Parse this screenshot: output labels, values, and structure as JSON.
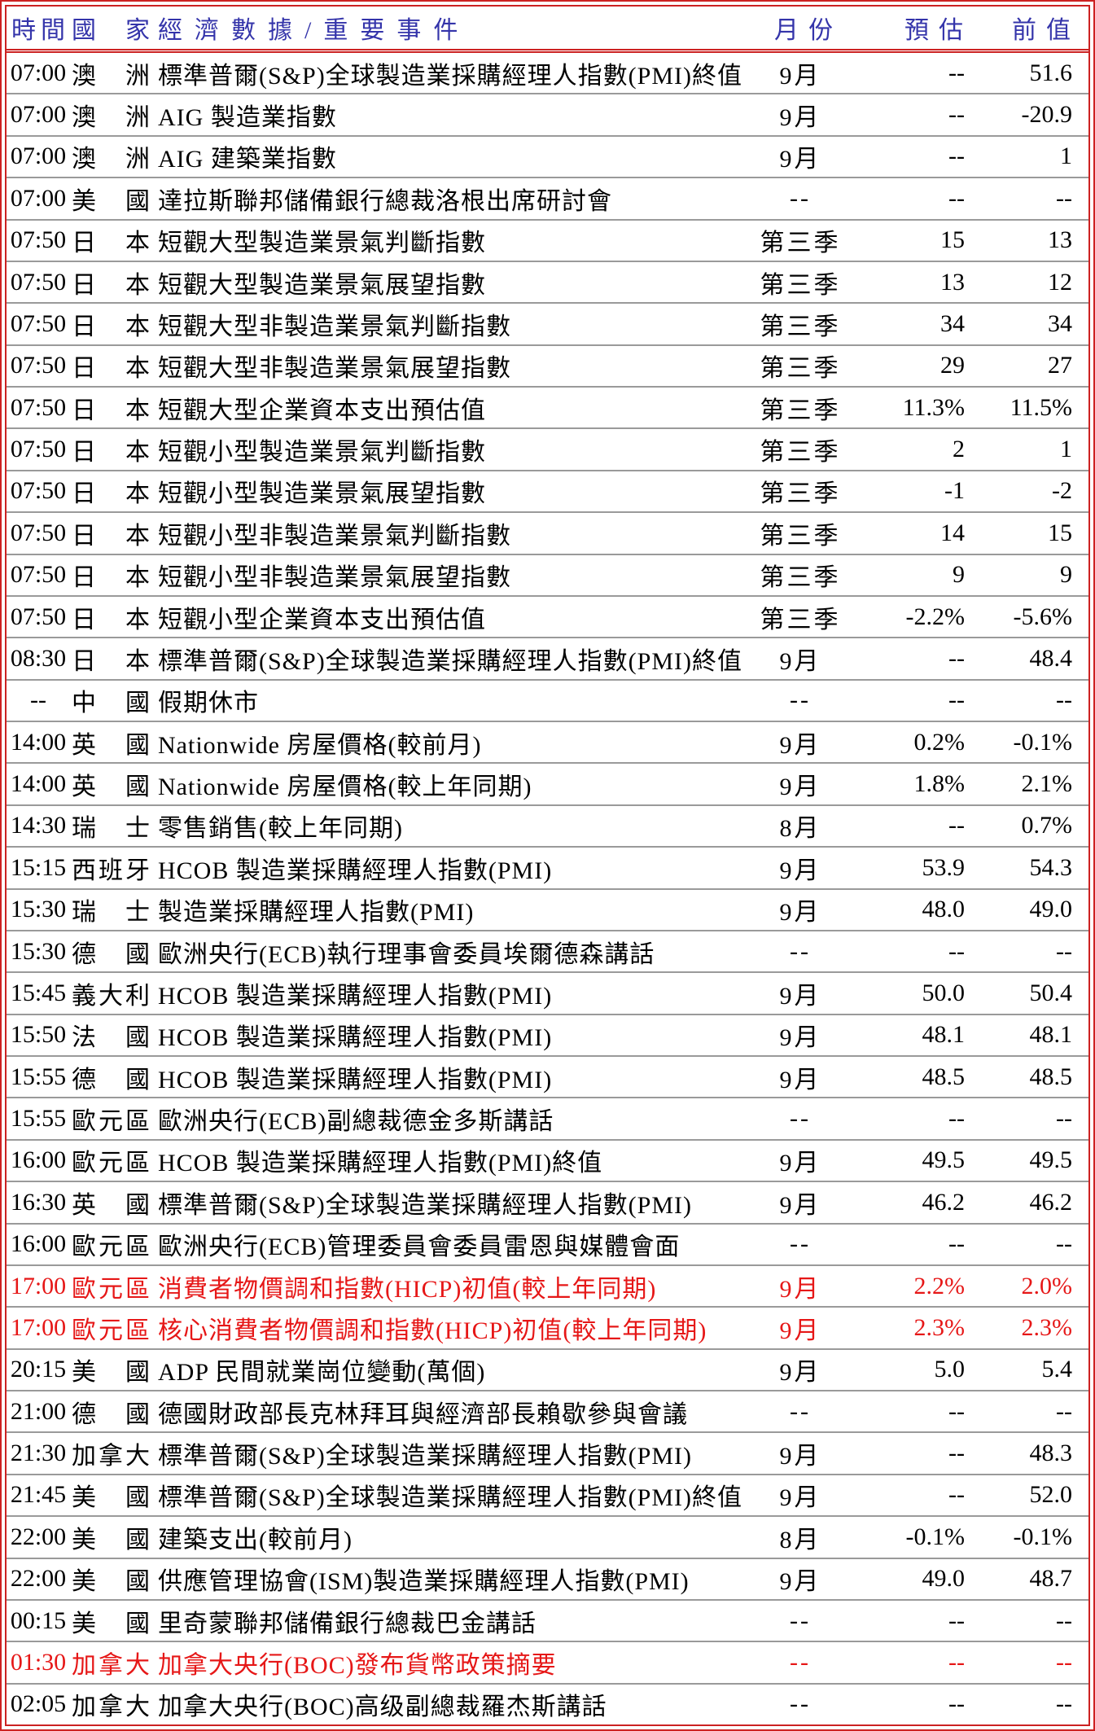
{
  "table": {
    "title_note": "economic-calendar",
    "colors": {
      "border_red": "#cc2222",
      "header_text_blue": "#3434aa",
      "highlight_red_text": "#e61717",
      "row_separator_gray": "#9a9a9a",
      "body_text": "#000000",
      "background": "#ffffff"
    },
    "headers": {
      "time": "時間",
      "country": "國家",
      "event": "經濟數據/重要事件",
      "month": "月份",
      "forecast": "預估",
      "previous": "前值"
    },
    "rows": [
      {
        "time": "07:00",
        "country": "澳洲",
        "event": "標準普爾(S&P)全球製造業採購經理人指數(PMI)終值",
        "month": "9月",
        "forecast": "--",
        "previous": "51.6",
        "red": false
      },
      {
        "time": "07:00",
        "country": "澳洲",
        "event": "AIG 製造業指數",
        "month": "9月",
        "forecast": "--",
        "previous": "-20.9",
        "red": false
      },
      {
        "time": "07:00",
        "country": "澳洲",
        "event": "AIG 建築業指數",
        "month": "9月",
        "forecast": "--",
        "previous": "1",
        "red": false
      },
      {
        "time": "07:00",
        "country": "美國",
        "event": "達拉斯聯邦儲備銀行總裁洛根出席研討會",
        "month": "--",
        "forecast": "--",
        "previous": "--",
        "red": false
      },
      {
        "time": "07:50",
        "country": "日本",
        "event": "短觀大型製造業景氣判斷指數",
        "month": "第三季",
        "forecast": "15",
        "previous": "13",
        "red": false
      },
      {
        "time": "07:50",
        "country": "日本",
        "event": "短觀大型製造業景氣展望指數",
        "month": "第三季",
        "forecast": "13",
        "previous": "12",
        "red": false
      },
      {
        "time": "07:50",
        "country": "日本",
        "event": "短觀大型非製造業景氣判斷指數",
        "month": "第三季",
        "forecast": "34",
        "previous": "34",
        "red": false
      },
      {
        "time": "07:50",
        "country": "日本",
        "event": "短觀大型非製造業景氣展望指數",
        "month": "第三季",
        "forecast": "29",
        "previous": "27",
        "red": false
      },
      {
        "time": "07:50",
        "country": "日本",
        "event": "短觀大型企業資本支出預估值",
        "month": "第三季",
        "forecast": "11.3%",
        "previous": "11.5%",
        "red": false
      },
      {
        "time": "07:50",
        "country": "日本",
        "event": "短觀小型製造業景氣判斷指數",
        "month": "第三季",
        "forecast": "2",
        "previous": "1",
        "red": false
      },
      {
        "time": "07:50",
        "country": "日本",
        "event": "短觀小型製造業景氣展望指數",
        "month": "第三季",
        "forecast": "-1",
        "previous": "-2",
        "red": false
      },
      {
        "time": "07:50",
        "country": "日本",
        "event": "短觀小型非製造業景氣判斷指數",
        "month": "第三季",
        "forecast": "14",
        "previous": "15",
        "red": false
      },
      {
        "time": "07:50",
        "country": "日本",
        "event": "短觀小型非製造業景氣展望指數",
        "month": "第三季",
        "forecast": "9",
        "previous": "9",
        "red": false
      },
      {
        "time": "07:50",
        "country": "日本",
        "event": "短觀小型企業資本支出預估值",
        "month": "第三季",
        "forecast": "-2.2%",
        "previous": "-5.6%",
        "red": false
      },
      {
        "time": "08:30",
        "country": "日本",
        "event": "標準普爾(S&P)全球製造業採購經理人指數(PMI)終值",
        "month": "9月",
        "forecast": "--",
        "previous": "48.4",
        "red": false
      },
      {
        "time": "--",
        "country": "中國",
        "event": "假期休市",
        "month": "--",
        "forecast": "--",
        "previous": "--",
        "red": false
      },
      {
        "time": "14:00",
        "country": "英國",
        "event": "Nationwide 房屋價格(較前月)",
        "month": "9月",
        "forecast": "0.2%",
        "previous": "-0.1%",
        "red": false
      },
      {
        "time": "14:00",
        "country": "英國",
        "event": "Nationwide 房屋價格(較上年同期)",
        "month": "9月",
        "forecast": "1.8%",
        "previous": "2.1%",
        "red": false
      },
      {
        "time": "14:30",
        "country": "瑞士",
        "event": "零售銷售(較上年同期)",
        "month": "8月",
        "forecast": "--",
        "previous": "0.7%",
        "red": false
      },
      {
        "time": "15:15",
        "country": "西班牙",
        "event": "HCOB 製造業採購經理人指數(PMI)",
        "month": "9月",
        "forecast": "53.9",
        "previous": "54.3",
        "red": false
      },
      {
        "time": "15:30",
        "country": "瑞士",
        "event": "製造業採購經理人指數(PMI)",
        "month": "9月",
        "forecast": "48.0",
        "previous": "49.0",
        "red": false
      },
      {
        "time": "15:30",
        "country": "德國",
        "event": "歐洲央行(ECB)執行理事會委員埃爾德森講話",
        "month": "--",
        "forecast": "--",
        "previous": "--",
        "red": false
      },
      {
        "time": "15:45",
        "country": "義大利",
        "event": "HCOB 製造業採購經理人指數(PMI)",
        "month": "9月",
        "forecast": "50.0",
        "previous": "50.4",
        "red": false
      },
      {
        "time": "15:50",
        "country": "法國",
        "event": "HCOB 製造業採購經理人指數(PMI)",
        "month": "9月",
        "forecast": "48.1",
        "previous": "48.1",
        "red": false
      },
      {
        "time": "15:55",
        "country": "德國",
        "event": "HCOB 製造業採購經理人指數(PMI)",
        "month": "9月",
        "forecast": "48.5",
        "previous": "48.5",
        "red": false
      },
      {
        "time": "15:55",
        "country": "歐元區",
        "event": "歐洲央行(ECB)副總裁德金多斯講話",
        "month": "--",
        "forecast": "--",
        "previous": "--",
        "red": false
      },
      {
        "time": "16:00",
        "country": "歐元區",
        "event": "HCOB 製造業採購經理人指數(PMI)終值",
        "month": "9月",
        "forecast": "49.5",
        "previous": "49.5",
        "red": false
      },
      {
        "time": "16:30",
        "country": "英國",
        "event": "標準普爾(S&P)全球製造業採購經理人指數(PMI)",
        "month": "9月",
        "forecast": "46.2",
        "previous": "46.2",
        "red": false
      },
      {
        "time": "16:00",
        "country": "歐元區",
        "event": "歐洲央行(ECB)管理委員會委員雷恩與媒體會面",
        "month": "--",
        "forecast": "--",
        "previous": "--",
        "red": false
      },
      {
        "time": "17:00",
        "country": "歐元區",
        "event": "消費者物價調和指數(HICP)初值(較上年同期)",
        "month": "9月",
        "forecast": "2.2%",
        "previous": "2.0%",
        "red": true
      },
      {
        "time": "17:00",
        "country": "歐元區",
        "event": "核心消費者物價調和指數(HICP)初值(較上年同期)",
        "month": "9月",
        "forecast": "2.3%",
        "previous": "2.3%",
        "red": true
      },
      {
        "time": "20:15",
        "country": "美國",
        "event": "ADP 民間就業崗位變動(萬個)",
        "month": "9月",
        "forecast": "5.0",
        "previous": "5.4",
        "red": false
      },
      {
        "time": "21:00",
        "country": "德國",
        "event": "德國財政部長克林拜耳與經濟部長賴歇參與會議",
        "month": "--",
        "forecast": "--",
        "previous": "--",
        "red": false
      },
      {
        "time": "21:30",
        "country": "加拿大",
        "event": "標準普爾(S&P)全球製造業採購經理人指數(PMI)",
        "month": "9月",
        "forecast": "--",
        "previous": "48.3",
        "red": false
      },
      {
        "time": "21:45",
        "country": "美國",
        "event": "標準普爾(S&P)全球製造業採購經理人指數(PMI)終值",
        "month": "9月",
        "forecast": "--",
        "previous": "52.0",
        "red": false
      },
      {
        "time": "22:00",
        "country": "美國",
        "event": "建築支出(較前月)",
        "month": "8月",
        "forecast": "-0.1%",
        "previous": "-0.1%",
        "red": false
      },
      {
        "time": "22:00",
        "country": "美國",
        "event": "供應管理協會(ISM)製造業採購經理人指數(PMI)",
        "month": "9月",
        "forecast": "49.0",
        "previous": "48.7",
        "red": false
      },
      {
        "time": "00:15",
        "country": "美國",
        "event": "里奇蒙聯邦儲備銀行總裁巴金講話",
        "month": "--",
        "forecast": "--",
        "previous": "--",
        "red": false
      },
      {
        "time": "01:30",
        "country": "加拿大",
        "event": "加拿大央行(BOC)發布貨幣政策摘要",
        "month": "--",
        "forecast": "--",
        "previous": "--",
        "red": true
      },
      {
        "time": "02:05",
        "country": "加拿大",
        "event": "加拿大央行(BOC)高级副總裁羅杰斯講話",
        "month": "--",
        "forecast": "--",
        "previous": "--",
        "red": false
      }
    ]
  }
}
